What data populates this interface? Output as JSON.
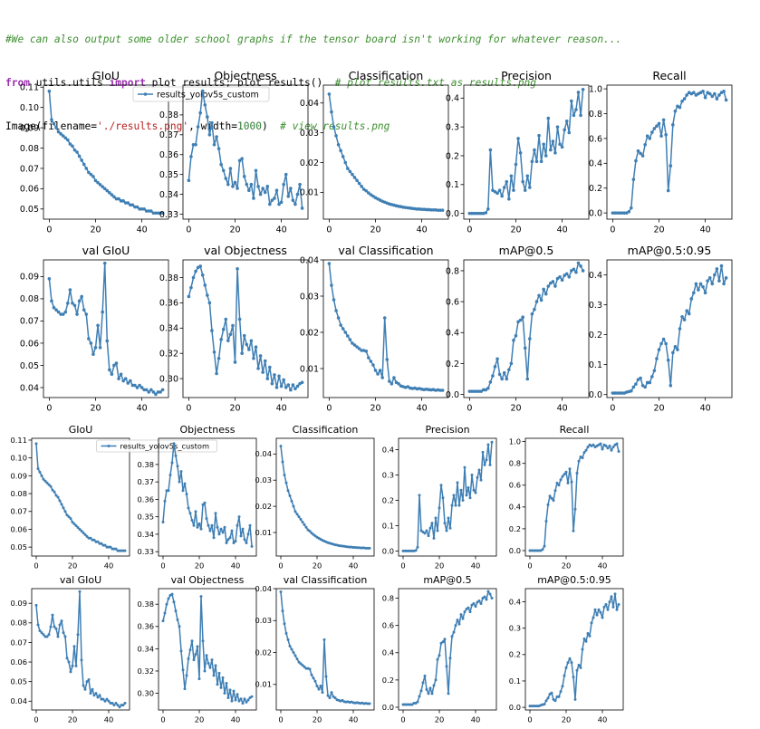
{
  "code": {
    "comment": "#We can also output some older school graphs if the tensor board isn't working for whatever reason...",
    "line2_kw1": "from",
    "line2_mod": " utils.utils ",
    "line2_kw2": "import",
    "line2_rest": " plot_results; plot_results()  ",
    "line2_comment": "# plot results.txt as results.png",
    "line3_a": "Image(filename=",
    "line3_str": "'./results.png'",
    "line3_b": ", width=",
    "line3_num": "1000",
    "line3_c": ")  ",
    "line3_comment": "# view results.png"
  },
  "colors": {
    "series": "#3f7fb4",
    "axis": "#000000",
    "background": "#ffffff"
  },
  "chart_data": {
    "type": "line",
    "series_name": "results_yolov5s_custom",
    "x": [
      0,
      1,
      2,
      3,
      4,
      5,
      6,
      7,
      8,
      9,
      10,
      11,
      12,
      13,
      14,
      15,
      16,
      17,
      18,
      19,
      20,
      21,
      22,
      23,
      24,
      25,
      26,
      27,
      28,
      29,
      30,
      31,
      32,
      33,
      34,
      35,
      36,
      37,
      38,
      39,
      40,
      41,
      42,
      43,
      44,
      45,
      46,
      47,
      48,
      49
    ],
    "xticks": [
      0,
      20,
      40
    ],
    "xlim": [
      -2.5,
      51.5
    ],
    "panels": [
      {
        "title": "GIoU",
        "ylim": [
          0.045,
          0.111
        ],
        "yticks": [
          0.05,
          0.06,
          0.07,
          0.08,
          0.09,
          0.1,
          0.11
        ],
        "ytick_labels": [
          "0.05",
          "0.06",
          "0.07",
          "0.08",
          "0.09",
          "0.10",
          "0.11"
        ],
        "legend": true,
        "values": [
          0.108,
          0.094,
          0.092,
          0.09,
          0.088,
          0.087,
          0.086,
          0.085,
          0.084,
          0.082,
          0.081,
          0.079,
          0.078,
          0.076,
          0.074,
          0.072,
          0.07,
          0.068,
          0.067,
          0.066,
          0.064,
          0.063,
          0.062,
          0.061,
          0.06,
          0.059,
          0.058,
          0.057,
          0.056,
          0.055,
          0.055,
          0.054,
          0.054,
          0.053,
          0.053,
          0.052,
          0.052,
          0.051,
          0.051,
          0.05,
          0.05,
          0.05,
          0.049,
          0.049,
          0.049,
          0.048,
          0.048,
          0.048,
          0.048,
          0.048
        ]
      },
      {
        "title": "Objectness",
        "ylim": [
          0.3275,
          0.395
        ],
        "yticks": [
          0.33,
          0.34,
          0.35,
          0.36,
          0.37,
          0.38
        ],
        "ytick_labels": [
          "0.33",
          "0.34",
          "0.35",
          "0.36",
          "0.37",
          "0.38"
        ],
        "values": [
          0.347,
          0.359,
          0.365,
          0.365,
          0.374,
          0.381,
          0.392,
          0.385,
          0.379,
          0.37,
          0.376,
          0.365,
          0.369,
          0.363,
          0.355,
          0.352,
          0.348,
          0.345,
          0.353,
          0.344,
          0.346,
          0.343,
          0.357,
          0.358,
          0.349,
          0.345,
          0.342,
          0.345,
          0.338,
          0.352,
          0.344,
          0.34,
          0.343,
          0.341,
          0.344,
          0.335,
          0.337,
          0.338,
          0.342,
          0.335,
          0.336,
          0.345,
          0.35,
          0.339,
          0.343,
          0.337,
          0.335,
          0.34,
          0.345,
          0.333
        ]
      },
      {
        "title": "Classification",
        "ylim": [
          0.001,
          0.046
        ],
        "yticks": [
          0.01,
          0.02,
          0.03,
          0.04
        ],
        "ytick_labels": [
          "0.01",
          "0.02",
          "0.03",
          "0.04"
        ],
        "values": [
          0.043,
          0.037,
          0.032,
          0.029,
          0.026,
          0.024,
          0.022,
          0.02,
          0.018,
          0.017,
          0.016,
          0.015,
          0.014,
          0.013,
          0.012,
          0.011,
          0.0105,
          0.0098,
          0.0092,
          0.0087,
          0.0082,
          0.0078,
          0.0074,
          0.007,
          0.0067,
          0.0064,
          0.0061,
          0.0059,
          0.0057,
          0.0055,
          0.0053,
          0.0052,
          0.005,
          0.0049,
          0.0048,
          0.0047,
          0.0046,
          0.0045,
          0.0044,
          0.0044,
          0.0043,
          0.0043,
          0.0042,
          0.0042,
          0.0041,
          0.0041,
          0.0041,
          0.004,
          0.004,
          0.004
        ]
      },
      {
        "title": "Precision",
        "ylim": [
          -0.02,
          0.445
        ],
        "yticks": [
          0.0,
          0.1,
          0.2,
          0.3,
          0.4
        ],
        "ytick_labels": [
          "0.0",
          "0.1",
          "0.2",
          "0.3",
          "0.4"
        ],
        "values": [
          0,
          0,
          0,
          0,
          0,
          0,
          0,
          0.002,
          0.015,
          0.22,
          0.08,
          0.075,
          0.07,
          0.08,
          0.06,
          0.09,
          0.11,
          0.05,
          0.13,
          0.08,
          0.17,
          0.26,
          0.21,
          0.11,
          0.08,
          0.13,
          0.09,
          0.18,
          0.22,
          0.18,
          0.27,
          0.18,
          0.24,
          0.2,
          0.33,
          0.22,
          0.25,
          0.21,
          0.3,
          0.24,
          0.23,
          0.29,
          0.32,
          0.28,
          0.39,
          0.34,
          0.36,
          0.42,
          0.34,
          0.43
        ]
      },
      {
        "title": "Recall",
        "ylim": [
          -0.05,
          1.03
        ],
        "yticks": [
          0.0,
          0.2,
          0.4,
          0.6,
          0.8,
          1.0
        ],
        "ytick_labels": [
          "0.0",
          "0.2",
          "0.4",
          "0.6",
          "0.8",
          "1.0"
        ],
        "values": [
          0,
          0,
          0,
          0,
          0,
          0,
          0,
          0.01,
          0.04,
          0.27,
          0.42,
          0.5,
          0.48,
          0.46,
          0.55,
          0.62,
          0.6,
          0.65,
          0.68,
          0.7,
          0.72,
          0.62,
          0.75,
          0.63,
          0.18,
          0.38,
          0.71,
          0.82,
          0.86,
          0.85,
          0.9,
          0.92,
          0.95,
          0.97,
          0.96,
          0.97,
          0.95,
          0.96,
          0.97,
          0.98,
          0.93,
          0.97,
          0.96,
          0.94,
          0.96,
          0.92,
          0.95,
          0.97,
          0.98,
          0.91
        ]
      },
      {
        "title": "val GIoU",
        "ylim": [
          0.0355,
          0.0975
        ],
        "yticks": [
          0.04,
          0.05,
          0.06,
          0.07,
          0.08,
          0.09
        ],
        "ytick_labels": [
          "0.04",
          "0.05",
          "0.06",
          "0.07",
          "0.08",
          "0.09"
        ],
        "values": [
          0.089,
          0.079,
          0.076,
          0.075,
          0.074,
          0.073,
          0.073,
          0.074,
          0.078,
          0.084,
          0.078,
          0.077,
          0.073,
          0.079,
          0.081,
          0.075,
          0.073,
          0.062,
          0.06,
          0.055,
          0.058,
          0.068,
          0.058,
          0.074,
          0.096,
          0.061,
          0.048,
          0.046,
          0.05,
          0.051,
          0.044,
          0.046,
          0.043,
          0.044,
          0.042,
          0.043,
          0.041,
          0.041,
          0.04,
          0.041,
          0.04,
          0.039,
          0.039,
          0.038,
          0.039,
          0.038,
          0.037,
          0.038,
          0.038,
          0.039
        ]
      },
      {
        "title": "val Objectness",
        "ylim": [
          0.285,
          0.394
        ],
        "yticks": [
          0.3,
          0.32,
          0.34,
          0.36,
          0.38
        ],
        "ytick_labels": [
          "0.30",
          "0.32",
          "0.34",
          "0.36",
          "0.38"
        ],
        "values": [
          0.365,
          0.372,
          0.38,
          0.385,
          0.388,
          0.389,
          0.382,
          0.374,
          0.366,
          0.36,
          0.338,
          0.321,
          0.304,
          0.316,
          0.331,
          0.339,
          0.347,
          0.33,
          0.335,
          0.342,
          0.313,
          0.387,
          0.347,
          0.32,
          0.334,
          0.327,
          0.323,
          0.33,
          0.316,
          0.325,
          0.308,
          0.318,
          0.305,
          0.314,
          0.3,
          0.309,
          0.296,
          0.303,
          0.293,
          0.302,
          0.294,
          0.299,
          0.293,
          0.295,
          0.291,
          0.295,
          0.292,
          0.294,
          0.296,
          0.297
        ]
      },
      {
        "title": "val Classification",
        "ylim": [
          0.002,
          0.04
        ],
        "yticks": [
          0.01,
          0.02,
          0.03,
          0.04
        ],
        "ytick_labels": [
          "0.01",
          "0.02",
          "0.03",
          "0.04"
        ],
        "values": [
          0.039,
          0.033,
          0.029,
          0.026,
          0.024,
          0.022,
          0.021,
          0.02,
          0.019,
          0.018,
          0.017,
          0.0165,
          0.016,
          0.0155,
          0.015,
          0.015,
          0.0148,
          0.013,
          0.012,
          0.011,
          0.0095,
          0.0085,
          0.0095,
          0.0075,
          0.024,
          0.0125,
          0.0065,
          0.0058,
          0.0075,
          0.0062,
          0.0058,
          0.0052,
          0.005,
          0.0048,
          0.005,
          0.0046,
          0.0045,
          0.0046,
          0.0044,
          0.0045,
          0.0043,
          0.0042,
          0.0043,
          0.0042,
          0.0041,
          0.0042,
          0.004,
          0.0041,
          0.004,
          0.004
        ]
      },
      {
        "title": "mAP@0.5",
        "ylim": [
          -0.02,
          0.87
        ],
        "yticks": [
          0.0,
          0.2,
          0.4,
          0.6,
          0.8
        ],
        "ytick_labels": [
          "0.0",
          "0.2",
          "0.4",
          "0.6",
          "0.8"
        ],
        "values": [
          0.02,
          0.02,
          0.02,
          0.02,
          0.02,
          0.02,
          0.03,
          0.03,
          0.04,
          0.08,
          0.12,
          0.18,
          0.23,
          0.13,
          0.1,
          0.14,
          0.1,
          0.16,
          0.2,
          0.35,
          0.38,
          0.47,
          0.48,
          0.5,
          0.3,
          0.1,
          0.36,
          0.52,
          0.55,
          0.6,
          0.64,
          0.61,
          0.68,
          0.65,
          0.7,
          0.72,
          0.73,
          0.7,
          0.75,
          0.76,
          0.74,
          0.77,
          0.78,
          0.76,
          0.8,
          0.81,
          0.79,
          0.85,
          0.83,
          0.8
        ]
      },
      {
        "title": "mAP@0.5:0.95",
        "ylim": [
          -0.01,
          0.45
        ],
        "yticks": [
          0.0,
          0.1,
          0.2,
          0.3,
          0.4
        ],
        "ytick_labels": [
          "0.0",
          "0.1",
          "0.2",
          "0.3",
          "0.4"
        ],
        "values": [
          0.005,
          0.005,
          0.005,
          0.005,
          0.005,
          0.005,
          0.008,
          0.01,
          0.012,
          0.025,
          0.035,
          0.05,
          0.055,
          0.03,
          0.025,
          0.04,
          0.04,
          0.06,
          0.08,
          0.12,
          0.15,
          0.17,
          0.185,
          0.17,
          0.115,
          0.03,
          0.14,
          0.16,
          0.15,
          0.22,
          0.26,
          0.25,
          0.28,
          0.27,
          0.32,
          0.34,
          0.37,
          0.35,
          0.37,
          0.36,
          0.34,
          0.38,
          0.39,
          0.37,
          0.4,
          0.42,
          0.38,
          0.43,
          0.37,
          0.39
        ]
      }
    ]
  }
}
